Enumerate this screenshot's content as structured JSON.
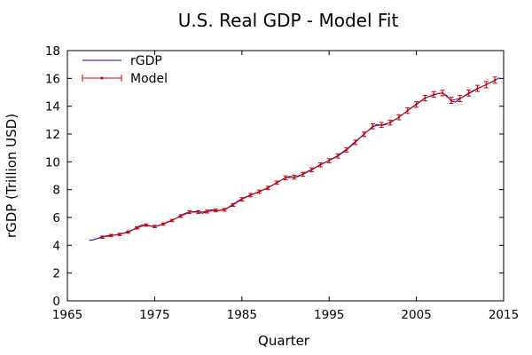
{
  "chart_data": {
    "type": "line",
    "title": "U.S. Real GDP - Model Fit",
    "xlabel": "Quarter",
    "ylabel": "rGDP (Trillion USD)",
    "xlim": [
      1965,
      2015
    ],
    "ylim": [
      0,
      18
    ],
    "xticks": [
      1965,
      1975,
      1985,
      1995,
      2005,
      2015
    ],
    "yticks": [
      0,
      2,
      4,
      6,
      8,
      10,
      12,
      14,
      16,
      18
    ],
    "grid": false,
    "legend_position": "top-left",
    "series": [
      {
        "name": "rGDP",
        "color": "#0000cc",
        "marker": "none",
        "x": [
          1967.5,
          1968.0,
          1968.5,
          1969.0,
          1969.5,
          1970.0,
          1970.5,
          1971.0,
          1971.5,
          1972.0,
          1972.5,
          1973.0,
          1973.5,
          1974.0,
          1974.5,
          1975.0,
          1975.5,
          1976.0,
          1976.5,
          1977.0,
          1977.5,
          1978.0,
          1978.5,
          1979.0,
          1979.5,
          1980.0,
          1980.5,
          1981.0,
          1981.5,
          1982.0,
          1982.5,
          1983.0,
          1983.5,
          1984.0,
          1984.5,
          1985.0,
          1986.0,
          1987.0,
          1988.0,
          1989.0,
          1990.0,
          1990.5,
          1991.0,
          1991.5,
          1992.0,
          1993.0,
          1994.0,
          1995.0,
          1996.0,
          1997.0,
          1998.0,
          1999.0,
          2000.0,
          2000.5,
          2001.0,
          2001.5,
          2002.0,
          2003.0,
          2004.0,
          2005.0,
          2006.0,
          2007.0,
          2007.5,
          2008.0,
          2008.5,
          2009.0,
          2009.5,
          2010.0,
          2011.0,
          2012.0,
          2013.0,
          2014.0,
          2014.5
        ],
        "values": [
          4.35,
          4.4,
          4.5,
          4.6,
          4.68,
          4.72,
          4.74,
          4.8,
          4.88,
          5.0,
          5.12,
          5.3,
          5.45,
          5.42,
          5.38,
          5.35,
          5.42,
          5.55,
          5.68,
          5.8,
          5.95,
          6.15,
          6.3,
          6.38,
          6.42,
          6.4,
          6.3,
          6.45,
          6.55,
          6.48,
          6.5,
          6.58,
          6.75,
          6.95,
          7.15,
          7.35,
          7.62,
          7.85,
          8.15,
          8.5,
          8.85,
          8.95,
          8.88,
          8.95,
          9.15,
          9.45,
          9.8,
          10.1,
          10.45,
          10.9,
          11.45,
          12.0,
          12.5,
          12.7,
          12.62,
          12.68,
          12.85,
          13.2,
          13.7,
          14.15,
          14.6,
          14.8,
          14.92,
          14.95,
          14.75,
          14.35,
          14.3,
          14.55,
          14.9,
          15.25,
          15.55,
          15.85,
          16.05
        ]
      },
      {
        "name": "Model",
        "color": "#cc0000",
        "marker": "errorbar",
        "x": [
          1969,
          1970,
          1971,
          1972,
          1973,
          1974,
          1975,
          1976,
          1977,
          1978,
          1979,
          1980,
          1981,
          1982,
          1983,
          1984,
          1985,
          1986,
          1987,
          1988,
          1989,
          1990,
          1991,
          1992,
          1993,
          1994,
          1995,
          1996,
          1997,
          1998,
          1999,
          2000,
          2001,
          2002,
          2003,
          2004,
          2005,
          2006,
          2007,
          2008,
          2009,
          2010,
          2011,
          2012,
          2013,
          2014
        ],
        "values": [
          4.58,
          4.7,
          4.78,
          4.95,
          5.25,
          5.45,
          5.35,
          5.52,
          5.78,
          6.1,
          6.38,
          6.38,
          6.42,
          6.5,
          6.55,
          6.9,
          7.3,
          7.6,
          7.85,
          8.12,
          8.5,
          8.85,
          8.9,
          9.1,
          9.42,
          9.78,
          10.08,
          10.42,
          10.85,
          11.4,
          11.98,
          12.55,
          12.65,
          12.82,
          13.2,
          13.68,
          14.12,
          14.58,
          14.85,
          14.95,
          14.42,
          14.55,
          14.95,
          15.28,
          15.55,
          15.88
        ],
        "error": [
          0.08,
          0.08,
          0.08,
          0.08,
          0.08,
          0.08,
          0.08,
          0.08,
          0.08,
          0.1,
          0.1,
          0.1,
          0.1,
          0.1,
          0.1,
          0.1,
          0.12,
          0.12,
          0.12,
          0.12,
          0.12,
          0.14,
          0.14,
          0.14,
          0.14,
          0.14,
          0.15,
          0.15,
          0.15,
          0.16,
          0.16,
          0.18,
          0.18,
          0.18,
          0.18,
          0.2,
          0.2,
          0.2,
          0.2,
          0.2,
          0.22,
          0.22,
          0.22,
          0.22,
          0.22,
          0.22
        ]
      }
    ]
  }
}
